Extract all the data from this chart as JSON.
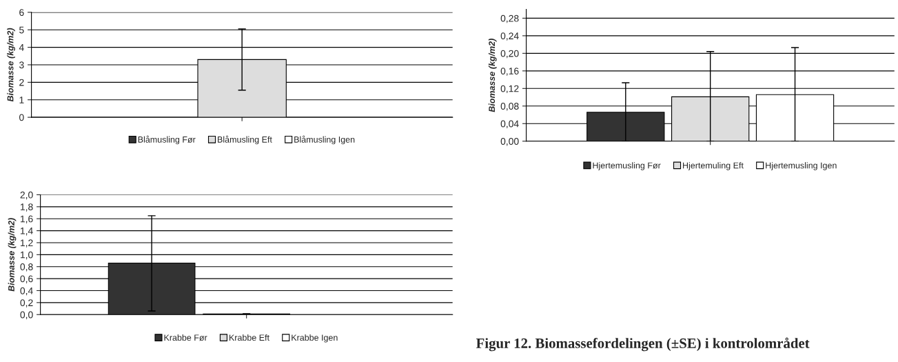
{
  "chart_data": [
    {
      "type": "bar",
      "ylabel": "Biomasse (kg/m2)",
      "categories": [
        null
      ],
      "ylim": [
        0,
        6
      ],
      "yticks": [
        0,
        1,
        2,
        3,
        4,
        5,
        6
      ],
      "grid": "y",
      "legend": "bottom",
      "series": [
        {
          "name": "Blåmusling Før",
          "color": "#333333",
          "values": [
            null
          ]
        },
        {
          "name": "Blåmusling Eft",
          "color": "#dddddd",
          "values": [
            3.3
          ],
          "errors": [
            [
              1.55,
              5.05
            ]
          ]
        },
        {
          "name": "Blåmusling Igen",
          "color": "#ffffff",
          "values": [
            null
          ]
        }
      ]
    },
    {
      "type": "bar",
      "ylabel": "Biomasse (kg/m2)",
      "categories": [
        null
      ],
      "ylim": [
        0,
        0.3
      ],
      "yticks": [
        {
          "value": 0,
          "label": "0,00"
        },
        {
          "value": 0.04,
          "label": "0,04"
        },
        {
          "value": 0.08,
          "label": "0,08"
        },
        {
          "value": 0.12,
          "label": "0,12"
        },
        {
          "value": 0.16,
          "label": "0,16"
        },
        {
          "value": 0.2,
          "label": "0,20"
        },
        {
          "value": 0.24,
          "label": "0,24"
        },
        {
          "value": 0.28,
          "label": "0,28"
        }
      ],
      "grid": "y",
      "legend": "bottom",
      "series": [
        {
          "name": "Hjertemusling Før",
          "color": "#333333",
          "values": [
            0.066
          ],
          "errors": [
            [
              0,
              0.133
            ]
          ]
        },
        {
          "name": "Hjertemuling Eft",
          "color": "#dddddd",
          "values": [
            0.101
          ],
          "errors": [
            [
              0,
              0.204
            ]
          ]
        },
        {
          "name": "Hjertemusling Igen",
          "color": "#ffffff",
          "values": [
            0.106
          ],
          "errors": [
            [
              0,
              0.213
            ]
          ]
        }
      ]
    },
    {
      "type": "bar",
      "ylabel": "Biomasse (kg/m2)",
      "categories": [
        null
      ],
      "ylim": [
        0,
        2
      ],
      "yticks": [
        {
          "value": 0,
          "label": "0,0"
        },
        {
          "value": 0.2,
          "label": "0,2"
        },
        {
          "value": 0.4,
          "label": "0,4"
        },
        {
          "value": 0.6,
          "label": "0,6"
        },
        {
          "value": 0.8,
          "label": "0,8"
        },
        {
          "value": 1.0,
          "label": "1,0"
        },
        {
          "value": 1.2,
          "label": "1,2"
        },
        {
          "value": 1.4,
          "label": "1,4"
        },
        {
          "value": 1.6,
          "label": "1,6"
        },
        {
          "value": 1.8,
          "label": "1,8"
        },
        {
          "value": 2.0,
          "label": "2,0"
        }
      ],
      "grid": "y",
      "legend": "bottom",
      "annotations": [
        "Figur 12. Biomassefordelingen (±SE) i kontrolområdet"
      ],
      "series": [
        {
          "name": "Krabbe Før",
          "color": "#333333",
          "values": [
            0.86
          ],
          "errors": [
            [
              0.06,
              1.65
            ]
          ]
        },
        {
          "name": "Krabbe Eft",
          "color": "#dddddd",
          "values": [
            0.01
          ],
          "errors": [
            [
              0.005,
              0.015
            ]
          ]
        },
        {
          "name": "Krabbe Igen",
          "color": "#ffffff",
          "values": [
            null
          ]
        }
      ]
    }
  ]
}
